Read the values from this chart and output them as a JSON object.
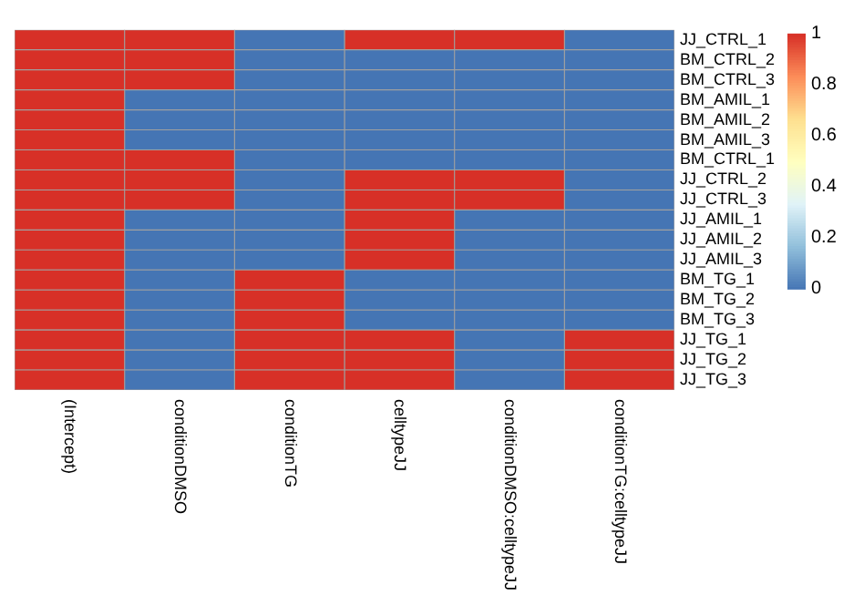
{
  "chart_data": {
    "type": "heatmap",
    "categories": [
      "(Intercept)",
      "conditionDMSO",
      "conditionTG",
      "celltypeJJ",
      "conditionDMSO:celltypeJJ",
      "conditionTG:celltypeJJ"
    ],
    "y_categories": [
      "JJ_CTRL_1",
      "BM_CTRL_2",
      "BM_CTRL_3",
      "BM_AMIL_1",
      "BM_AMIL_2",
      "BM_AMIL_3",
      "BM_CTRL_1",
      "JJ_CTRL_2",
      "JJ_CTRL_3",
      "JJ_AMIL_1",
      "JJ_AMIL_2",
      "JJ_AMIL_3",
      "BM_TG_1",
      "BM_TG_2",
      "BM_TG_3",
      "JJ_TG_1",
      "JJ_TG_2",
      "JJ_TG_3"
    ],
    "cells": [
      [
        1,
        1,
        0,
        1,
        1,
        0
      ],
      [
        1,
        1,
        0,
        0,
        0,
        0
      ],
      [
        1,
        1,
        0,
        0,
        0,
        0
      ],
      [
        1,
        0,
        0,
        0,
        0,
        0
      ],
      [
        1,
        0,
        0,
        0,
        0,
        0
      ],
      [
        1,
        0,
        0,
        0,
        0,
        0
      ],
      [
        1,
        1,
        0,
        0,
        0,
        0
      ],
      [
        1,
        1,
        0,
        1,
        1,
        0
      ],
      [
        1,
        1,
        0,
        1,
        1,
        0
      ],
      [
        1,
        0,
        0,
        1,
        0,
        0
      ],
      [
        1,
        0,
        0,
        1,
        0,
        0
      ],
      [
        1,
        0,
        0,
        1,
        0,
        0
      ],
      [
        1,
        0,
        1,
        0,
        0,
        0
      ],
      [
        1,
        0,
        1,
        0,
        0,
        0
      ],
      [
        1,
        0,
        1,
        0,
        0,
        0
      ],
      [
        1,
        0,
        1,
        1,
        0,
        1
      ],
      [
        1,
        0,
        1,
        1,
        0,
        1
      ],
      [
        1,
        0,
        1,
        1,
        0,
        1
      ]
    ],
    "clim": [
      0,
      1
    ],
    "cticks": [
      0,
      0.2,
      0.4,
      0.6,
      0.8,
      1
    ]
  }
}
